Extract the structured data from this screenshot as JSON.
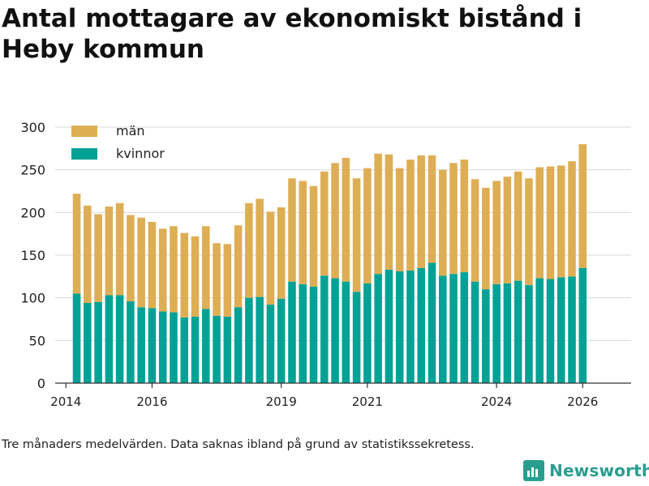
{
  "title": "Antal mottagare av ekonomiskt bistånd i Heby kommun",
  "footnote": "Tre månaders medelvärden. Data saknas ibland på grund av statistikssekretess.",
  "brand": {
    "name": "Newsworthy",
    "color": "#2a9d8f"
  },
  "colors": {
    "man": "#deae55",
    "kvinnor": "#00a296",
    "grid": "#d9d9d9",
    "axis": "#333333"
  },
  "chart_data": {
    "type": "bar",
    "stacked": true,
    "title": "Antal mottagare av ekonomiskt bistånd i Heby kommun",
    "xlabel": "",
    "ylabel": "",
    "ylim": [
      0,
      300
    ],
    "yticks": [
      0,
      50,
      100,
      150,
      200,
      250,
      300
    ],
    "xticks": [
      {
        "label": "2014",
        "pos": 0
      },
      {
        "label": "2016",
        "pos": 8
      },
      {
        "label": "2019",
        "pos": 20
      },
      {
        "label": "2021",
        "pos": 28
      },
      {
        "label": "2024",
        "pos": 40
      },
      {
        "label": "2026",
        "pos": 48
      }
    ],
    "x_range": [
      -1,
      52.5
    ],
    "legend_position": "top-left",
    "series": [
      {
        "name": "kvinnor",
        "color": "#00a296",
        "values": [
          105,
          94,
          95,
          103,
          103,
          96,
          89,
          88,
          84,
          83,
          77,
          78,
          87,
          79,
          78,
          89,
          100,
          101,
          92,
          99,
          119,
          116,
          113,
          126,
          123,
          119,
          107,
          117,
          128,
          133,
          131,
          132,
          135,
          141,
          126,
          128,
          130,
          119,
          110,
          116,
          117,
          120,
          115,
          123,
          122,
          124,
          125,
          135
        ]
      },
      {
        "name": "män",
        "color": "#deae55",
        "values": [
          117,
          114,
          103,
          104,
          108,
          101,
          105,
          101,
          97,
          101,
          99,
          94,
          97,
          85,
          85,
          96,
          111,
          115,
          109,
          107,
          121,
          121,
          118,
          122,
          135,
          145,
          133,
          135,
          141,
          135,
          121,
          130,
          132,
          126,
          124,
          130,
          132,
          120,
          119,
          121,
          125,
          128,
          125,
          130,
          132,
          131,
          135,
          145
        ]
      }
    ],
    "bar_positions": [
      1,
      2,
      3,
      4,
      5,
      6,
      7,
      8,
      9,
      10,
      11,
      12,
      13,
      14,
      15,
      16,
      17,
      18,
      19,
      20,
      21,
      22,
      23,
      24,
      25,
      26,
      27,
      28,
      29,
      30,
      31,
      32,
      33,
      34,
      35,
      36,
      37,
      38,
      39,
      40,
      41,
      42,
      43,
      44,
      45,
      46,
      47,
      48
    ]
  }
}
